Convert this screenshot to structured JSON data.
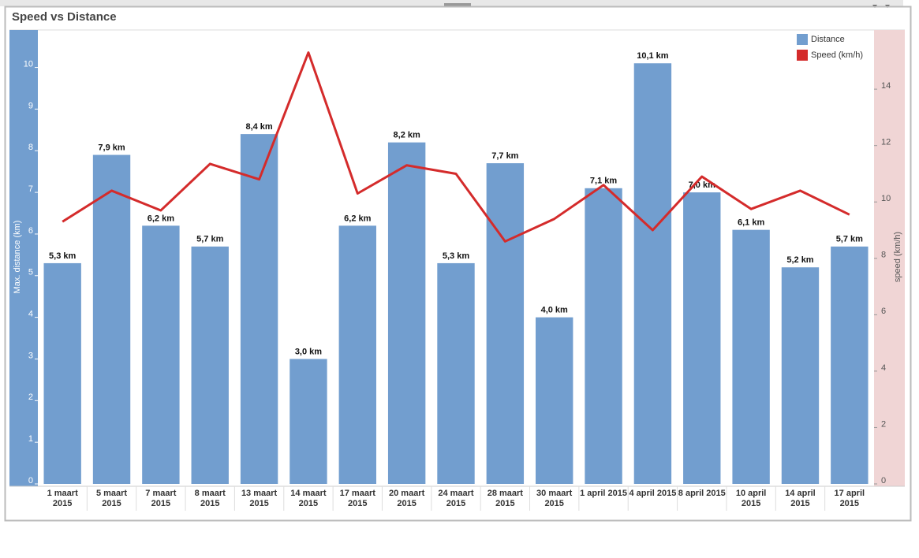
{
  "chart_data": {
    "type": "bar",
    "title": "Speed vs Distance",
    "categories": [
      "1 maart 2015",
      "5 maart 2015",
      "7 maart 2015",
      "8 maart 2015",
      "13 maart 2015",
      "14 maart 2015",
      "17 maart 2015",
      "20 maart 2015",
      "24 maart 2015",
      "28 maart 2015",
      "30 maart 2015",
      "1 april 2015",
      "4 april 2015",
      "8 april 2015",
      "10 april 2015",
      "14 april 2015",
      "17 april 2015"
    ],
    "series": [
      {
        "name": "Distance",
        "type": "bar",
        "color": "#729ecf",
        "values": [
          5.3,
          7.9,
          6.2,
          5.7,
          8.4,
          3.0,
          6.2,
          8.2,
          5.3,
          7.7,
          4.0,
          7.1,
          10.1,
          7.0,
          6.1,
          5.2,
          5.7
        ],
        "value_labels": [
          "5,3 km",
          "7,9 km",
          "6,2 km",
          "5,7 km",
          "8,4 km",
          "3,0 km",
          "6,2 km",
          "8,2 km",
          "5,3 km",
          "7,7 km",
          "4,0 km",
          "7,1 km",
          "10,1 km",
          "7,0 km",
          "6,1 km",
          "5,2 km",
          "5,7 km"
        ]
      },
      {
        "name": "Speed (km/h)",
        "type": "line",
        "axis": "y2",
        "color": "#d42b2b",
        "values": [
          9.3,
          10.4,
          9.7,
          11.35,
          10.8,
          15.3,
          10.3,
          11.3,
          11.0,
          8.6,
          9.4,
          10.6,
          9.0,
          10.9,
          9.75,
          10.4,
          9.55
        ]
      }
    ],
    "ylabel": "Max. distance (km)",
    "y2label": "speed (km/h)",
    "ylim": [
      0,
      10.9
    ],
    "yticks": [
      0,
      1,
      2,
      3,
      4,
      5,
      6,
      7,
      8,
      9,
      10
    ],
    "y2lim": [
      0,
      16.1
    ],
    "y2ticks": [
      0,
      2,
      4,
      6,
      8,
      10,
      12,
      14
    ],
    "legend": "top-right"
  }
}
